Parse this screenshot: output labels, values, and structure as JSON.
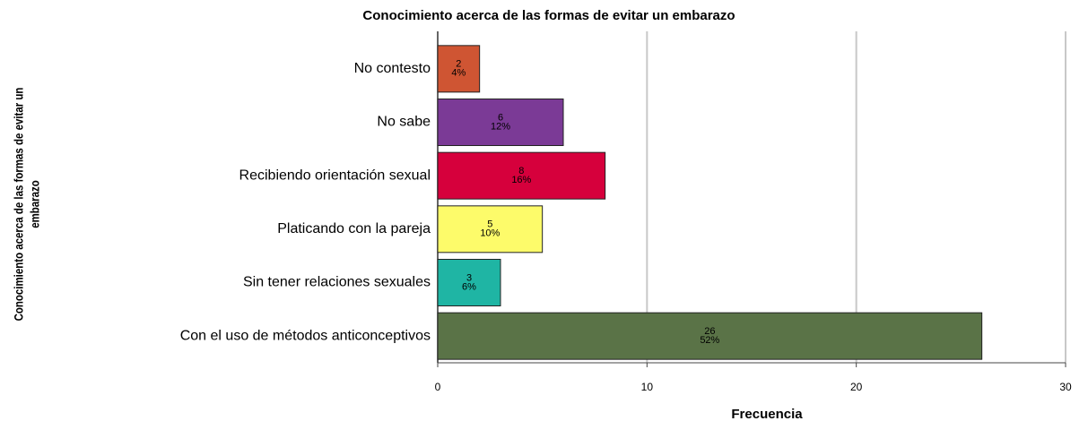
{
  "chart_data": {
    "type": "bar",
    "orientation": "horizontal",
    "title": "Conocimiento acerca de las formas de evitar un embarazo",
    "xlabel": "Frecuencia",
    "ylabel": [
      "Conocimiento acerca de las formas de evitar un",
      "embarazo"
    ],
    "categories": [
      "No contesto",
      "No sabe",
      "Recibiendo orientación sexual",
      "Platicando con la pareja",
      "Sin tener relaciones sexuales",
      "Con el uso de métodos anticonceptivos"
    ],
    "values": [
      2,
      6,
      8,
      5,
      3,
      26
    ],
    "percent_labels": [
      "4%",
      "12%",
      "16%",
      "10%",
      "6%",
      "52%"
    ],
    "colors": [
      "#cf5533",
      "#7b3a96",
      "#d6003c",
      "#fdfb6a",
      "#1fb5a4",
      "#5a7347"
    ],
    "xlim": [
      0,
      30
    ],
    "xticks": [
      0,
      10,
      20,
      30
    ],
    "grid": true
  }
}
